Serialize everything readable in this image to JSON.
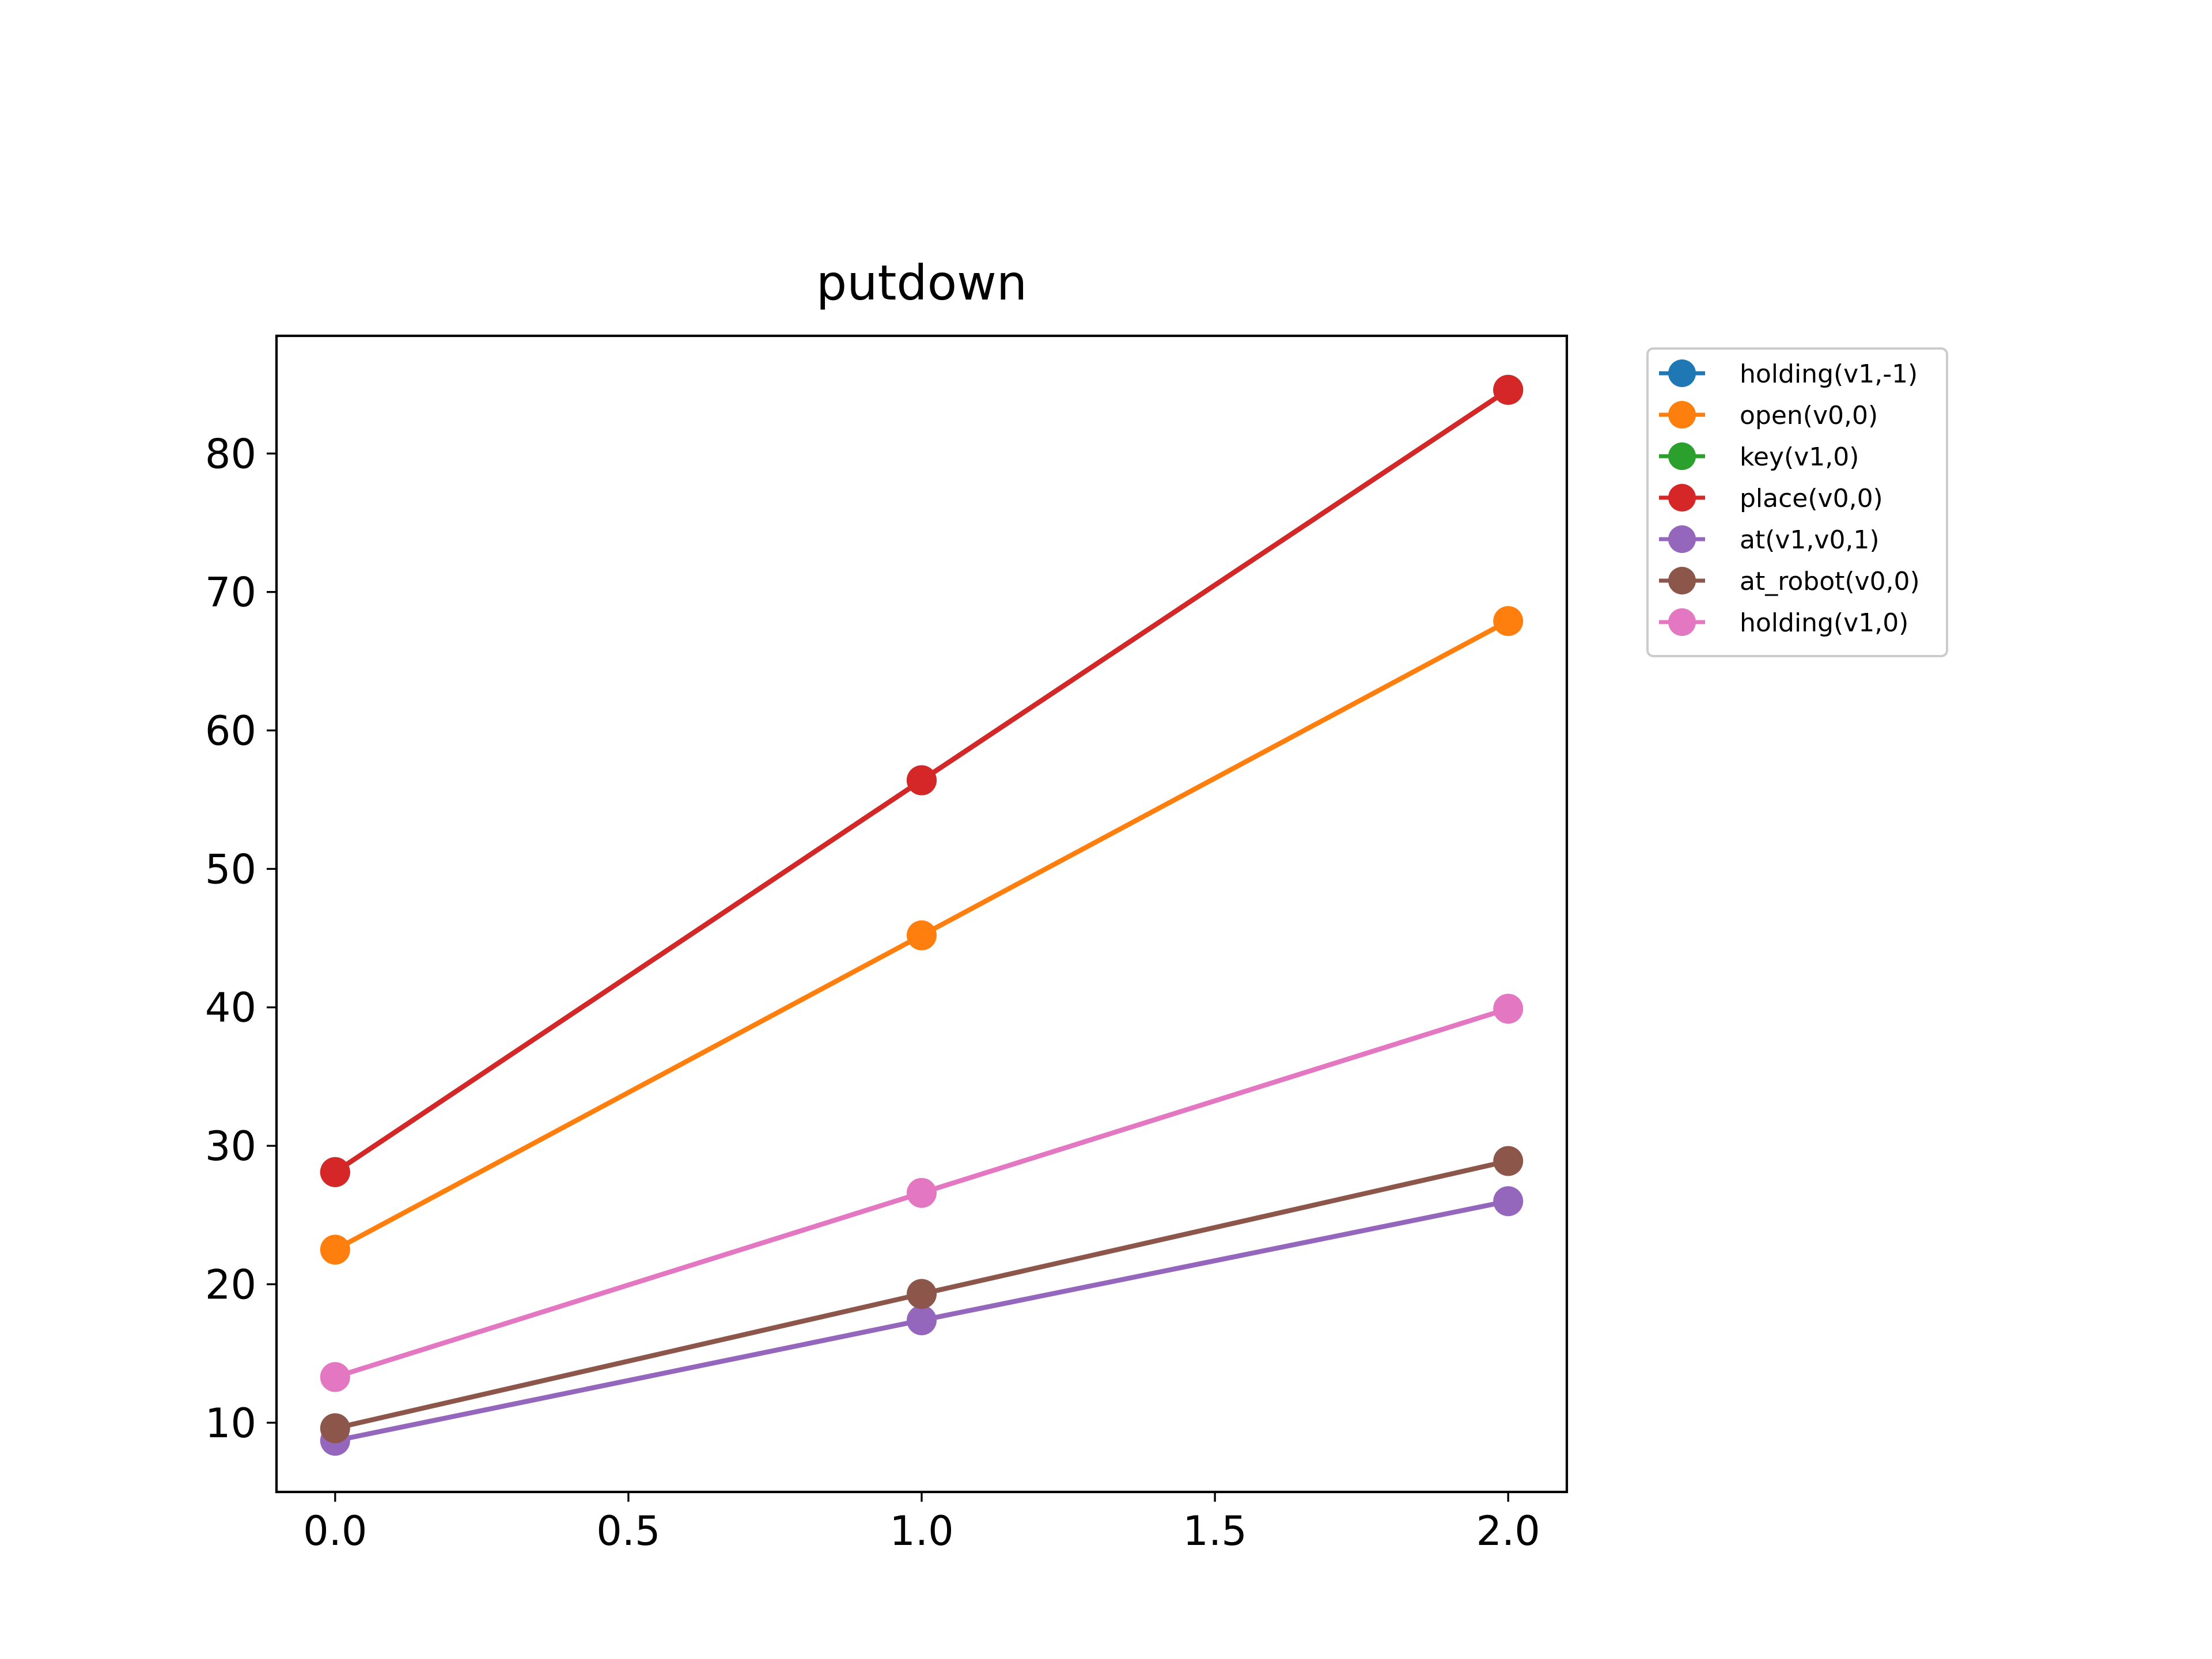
{
  "chart_data": {
    "type": "line",
    "title": "putdown",
    "xlabel": "",
    "ylabel": "",
    "x": [
      0.0,
      1.0,
      2.0
    ],
    "xlim": [
      -0.1,
      2.1
    ],
    "ylim": [
      5.0,
      88.5
    ],
    "xticks": [
      0.0,
      0.5,
      1.0,
      1.5,
      2.0
    ],
    "xtick_labels": [
      "0.0",
      "0.5",
      "1.0",
      "1.5",
      "2.0"
    ],
    "yticks": [
      10,
      20,
      30,
      40,
      50,
      60,
      70,
      80
    ],
    "ytick_labels": [
      "10",
      "20",
      "30",
      "40",
      "50",
      "60",
      "70",
      "80"
    ],
    "grid": false,
    "legend_position": "outside-top-right",
    "series": [
      {
        "name": "holding(v1,-1)",
        "color": "#1f77b4",
        "values": [
          28.1,
          56.4,
          84.6
        ]
      },
      {
        "name": "open(v0,0)",
        "color": "#ff7f0e",
        "values": [
          22.5,
          45.2,
          67.9
        ]
      },
      {
        "name": "key(v1,0)",
        "color": "#2ca02c",
        "values": [
          28.1,
          56.4,
          84.6
        ]
      },
      {
        "name": "place(v0,0)",
        "color": "#d62728",
        "values": [
          28.1,
          56.4,
          84.6
        ]
      },
      {
        "name": "at(v1,v0,1)",
        "color": "#9467bd",
        "values": [
          8.7,
          17.4,
          26.0
        ]
      },
      {
        "name": "at_robot(v0,0)",
        "color": "#8c564b",
        "values": [
          9.6,
          19.3,
          28.9
        ]
      },
      {
        "name": "holding(v1,0)",
        "color": "#e377c2",
        "values": [
          13.3,
          26.6,
          39.9
        ]
      }
    ]
  }
}
